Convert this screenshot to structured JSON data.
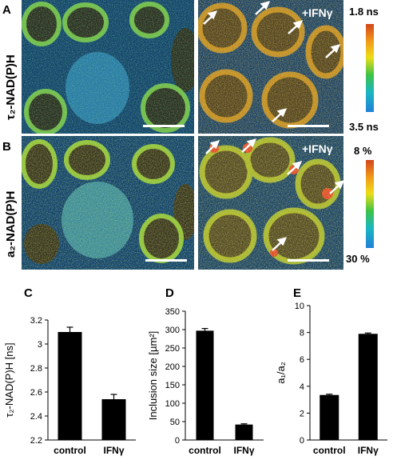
{
  "panels": {
    "A": "A",
    "B": "B",
    "C": "C",
    "D": "D",
    "E": "E"
  },
  "row_labels": {
    "A": "τ₂-NAD(P)H",
    "B": "a₂-NAD(P)H"
  },
  "treatment_label": "+IFNγ",
  "colorbars": {
    "A": {
      "top": "1.8 ns",
      "bottom": "3.5 ns"
    },
    "B": {
      "top": "8 %",
      "bottom": "30 %"
    }
  },
  "chart_data": [
    {
      "panel": "C",
      "type": "bar",
      "categories": [
        "control",
        "IFNγ"
      ],
      "values": [
        3.1,
        2.54
      ],
      "errors": [
        0.04,
        0.04
      ],
      "ylabel": "τ₂-NAD(P)H [ns]",
      "ylim": [
        2.2,
        3.2
      ],
      "yticks": [
        "2.2",
        "2.4",
        "2.6",
        "2.8",
        "3",
        "3.2"
      ],
      "bar_color": "#000000"
    },
    {
      "panel": "D",
      "type": "bar",
      "categories": [
        "control",
        "IFNγ"
      ],
      "values": [
        297,
        42
      ],
      "errors": [
        6,
        2
      ],
      "ylabel": "Inclusion size [µm²]",
      "ylim": [
        0,
        350
      ],
      "yticks": [
        "0",
        "50",
        "100",
        "150",
        "200",
        "250",
        "300",
        "350"
      ],
      "bar_color": "#000000"
    },
    {
      "panel": "E",
      "type": "bar",
      "categories": [
        "control",
        "IFNγ"
      ],
      "values": [
        3.35,
        7.9
      ],
      "errors": [
        0.06,
        0.06
      ],
      "ylabel": "a₁/a₂",
      "ylim": [
        0,
        10
      ],
      "yticks": [
        "0",
        "2",
        "4",
        "6",
        "8",
        "10"
      ],
      "bar_color": "#000000"
    }
  ]
}
